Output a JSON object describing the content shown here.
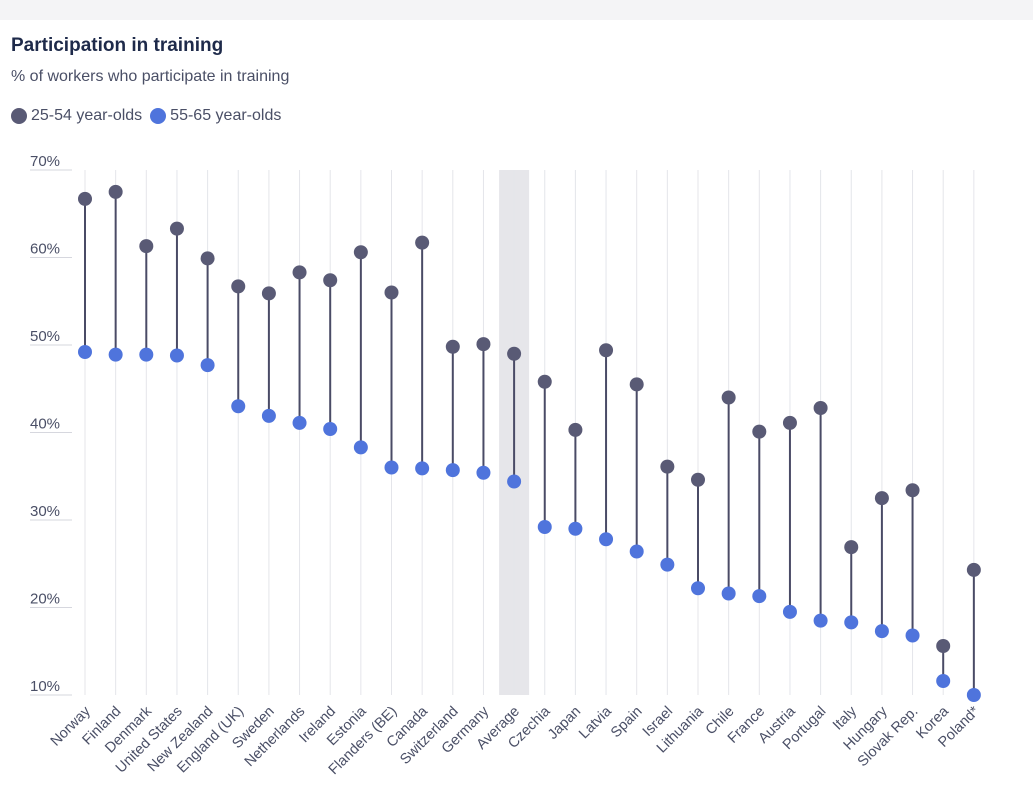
{
  "chart_data": {
    "type": "dumbbell",
    "title": "Participation in training",
    "subtitle": "% of workers who participate in training",
    "ylabel": "",
    "xlabel": "",
    "ylim": [
      10,
      70
    ],
    "yticks": [
      10,
      20,
      30,
      40,
      50,
      60,
      70
    ],
    "ytick_labels": [
      "10%",
      "20%",
      "30%",
      "40%",
      "50%",
      "60%",
      "70%"
    ],
    "highlight_category": "Average",
    "categories": [
      "Norway",
      "Finland",
      "Denmark",
      "United States",
      "New Zealand",
      "England (UK)",
      "Sweden",
      "Netherlands",
      "Ireland",
      "Estonia",
      "Flanders (BE)",
      "Canada",
      "Switzerland",
      "Germany",
      "Average",
      "Czechia",
      "Japan",
      "Latvia",
      "Spain",
      "Israel",
      "Lithuania",
      "Chile",
      "France",
      "Austria",
      "Portugal",
      "Italy",
      "Hungary",
      "Slovak Rep.",
      "Korea",
      "Poland*"
    ],
    "series": [
      {
        "name": "25-54 year-olds",
        "color": "#595a75",
        "values": [
          66.7,
          67.5,
          61.3,
          63.3,
          59.9,
          56.7,
          55.9,
          58.3,
          57.4,
          60.6,
          56.0,
          61.7,
          49.8,
          50.1,
          49.0,
          45.8,
          40.3,
          49.4,
          45.5,
          36.1,
          34.6,
          44.0,
          40.1,
          41.1,
          42.8,
          26.9,
          32.5,
          33.4,
          15.6,
          24.3
        ]
      },
      {
        "name": "55-65 year-olds",
        "color": "#4f74dc",
        "values": [
          49.2,
          48.9,
          48.9,
          48.8,
          47.7,
          43.0,
          41.9,
          41.1,
          40.4,
          38.3,
          36.0,
          35.9,
          35.7,
          35.4,
          34.4,
          29.2,
          29.0,
          27.8,
          26.4,
          24.9,
          22.2,
          21.6,
          21.3,
          19.5,
          18.5,
          18.3,
          17.3,
          16.8,
          11.6,
          10.0
        ]
      }
    ]
  }
}
